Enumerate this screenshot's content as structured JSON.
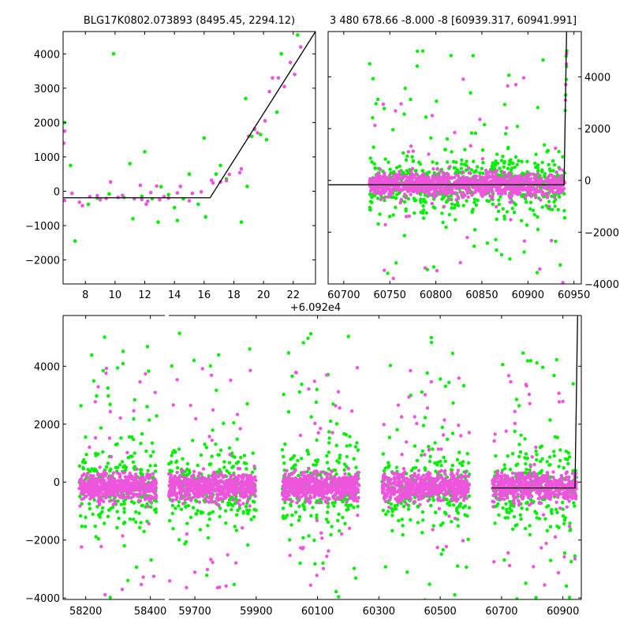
{
  "chart_data": [
    {
      "type": "scatter",
      "title": "BLG17K0802.073893 (8495.45, 2294.12)",
      "xlim": [
        6.5,
        23.5
      ],
      "ylim": [
        -2700,
        4650
      ],
      "xticks": [
        8,
        10,
        12,
        14,
        16,
        18,
        20,
        22
      ],
      "yticks": [
        -2000,
        -1000,
        0,
        1000,
        2000,
        3000,
        4000
      ],
      "offset_label": "+6.092e4",
      "colors": {
        "g": "#00ee00",
        "m": "#ee55dd",
        "model": "#000000"
      },
      "series": [
        {
          "points": [
            [
              6.6,
              2000
            ],
            [
              7.0,
              750
            ],
            [
              7.3,
              -1450
            ],
            [
              8.2,
              -380
            ],
            [
              8.8,
              -200
            ],
            [
              9.6,
              -80
            ],
            [
              9.9,
              4000
            ],
            [
              10.6,
              -180
            ],
            [
              11.0,
              800
            ],
            [
              11.2,
              -800
            ],
            [
              11.8,
              -150
            ],
            [
              12.0,
              1150
            ],
            [
              12.5,
              -220
            ],
            [
              12.9,
              -900
            ],
            [
              13.1,
              130
            ],
            [
              13.6,
              -100
            ],
            [
              14.0,
              -480
            ],
            [
              14.2,
              -850
            ],
            [
              14.6,
              -220
            ],
            [
              15.0,
              500
            ],
            [
              15.6,
              -380
            ],
            [
              16.0,
              1550
            ],
            [
              16.1,
              -750
            ],
            [
              16.8,
              500
            ],
            [
              17.1,
              750
            ],
            [
              17.5,
              360
            ],
            [
              18.5,
              -900
            ],
            [
              18.8,
              2700
            ],
            [
              18.9,
              140
            ],
            [
              19.2,
              1600
            ],
            [
              19.4,
              1800
            ],
            [
              19.8,
              1650
            ],
            [
              20.2,
              1500
            ],
            [
              20.9,
              2300
            ],
            [
              21.2,
              4000
            ],
            [
              22.3,
              4550
            ]
          ]
        },
        {
          "points": [
            [
              6.55,
              1400
            ],
            [
              6.6,
              1750
            ],
            [
              6.6,
              -270
            ],
            [
              7.1,
              -60
            ],
            [
              7.6,
              -320
            ],
            [
              7.8,
              -420
            ],
            [
              8.3,
              -160
            ],
            [
              8.8,
              -130
            ],
            [
              9.0,
              -250
            ],
            [
              9.4,
              -210
            ],
            [
              9.7,
              270
            ],
            [
              10.2,
              -180
            ],
            [
              10.5,
              -120
            ],
            [
              11.3,
              -220
            ],
            [
              11.7,
              170
            ],
            [
              11.8,
              -240
            ],
            [
              12.1,
              -380
            ],
            [
              12.2,
              -290
            ],
            [
              12.4,
              -40
            ],
            [
              12.8,
              150
            ],
            [
              13.0,
              -250
            ],
            [
              13.3,
              -160
            ],
            [
              13.6,
              -200
            ],
            [
              14.2,
              -50
            ],
            [
              14.4,
              140
            ],
            [
              15.0,
              -280
            ],
            [
              15.2,
              -60
            ],
            [
              15.8,
              -20
            ],
            [
              16.5,
              320
            ],
            [
              16.6,
              240
            ],
            [
              17.1,
              270
            ],
            [
              17.5,
              310
            ],
            [
              17.7,
              490
            ],
            [
              18.4,
              540
            ],
            [
              18.5,
              650
            ],
            [
              19.0,
              1600
            ],
            [
              19.4,
              1820
            ],
            [
              19.6,
              1700
            ],
            [
              20.1,
              2050
            ],
            [
              20.4,
              2900
            ],
            [
              20.6,
              3300
            ],
            [
              21.0,
              3300
            ],
            [
              21.4,
              3050
            ],
            [
              21.8,
              3750
            ],
            [
              22.1,
              3400
            ],
            [
              22.5,
              4200
            ]
          ]
        }
      ],
      "model": [
        [
          6.5,
          -190
        ],
        [
          16.4,
          -190
        ],
        [
          23.5,
          4650
        ]
      ]
    },
    {
      "type": "scatter",
      "title": "3 480 678.66 -8.000 -8 [60939.317, 60941.991]",
      "xlim": [
        60683,
        60958
      ],
      "ylim": [
        -4000,
        5750
      ],
      "xticks": [
        60700,
        60750,
        60800,
        60850,
        60900,
        60950
      ],
      "yticks": [
        -4000,
        -2000,
        0,
        2000,
        4000
      ],
      "y_axis_side": "right",
      "cloud": {
        "x_range": [
          60728,
          60940
        ],
        "g_count": 600,
        "m_count": 1100,
        "g_spread": 900,
        "m_spread": 320,
        "g_outliers": 60,
        "m_outliers": 40
      },
      "model": [
        [
          60683,
          -170
        ],
        [
          60939.3,
          -170
        ],
        [
          60942.0,
          5750
        ]
      ]
    },
    {
      "type": "scatter",
      "xticks": [
        58200,
        58400,
        59700,
        59900,
        60100,
        60300,
        60500,
        60700,
        60900
      ],
      "yticks": [
        -4000,
        -2000,
        0,
        2000,
        4000
      ],
      "ylim": [
        -4050,
        5750
      ],
      "broken_axis": true,
      "segments": [
        {
          "xlim": [
            58130,
            58445
          ],
          "cloud": [
            58180,
            58420
          ]
        },
        {
          "xlim": [
            59615,
            60960
          ],
          "cloud": [
            59615,
            59900,
            59985,
            60235,
            60310,
            60595,
            60670,
            60945
          ]
        }
      ],
      "model": [
        [
          60668,
          -200
        ],
        [
          60939.3,
          -200
        ],
        [
          60948,
          5750
        ]
      ]
    }
  ]
}
